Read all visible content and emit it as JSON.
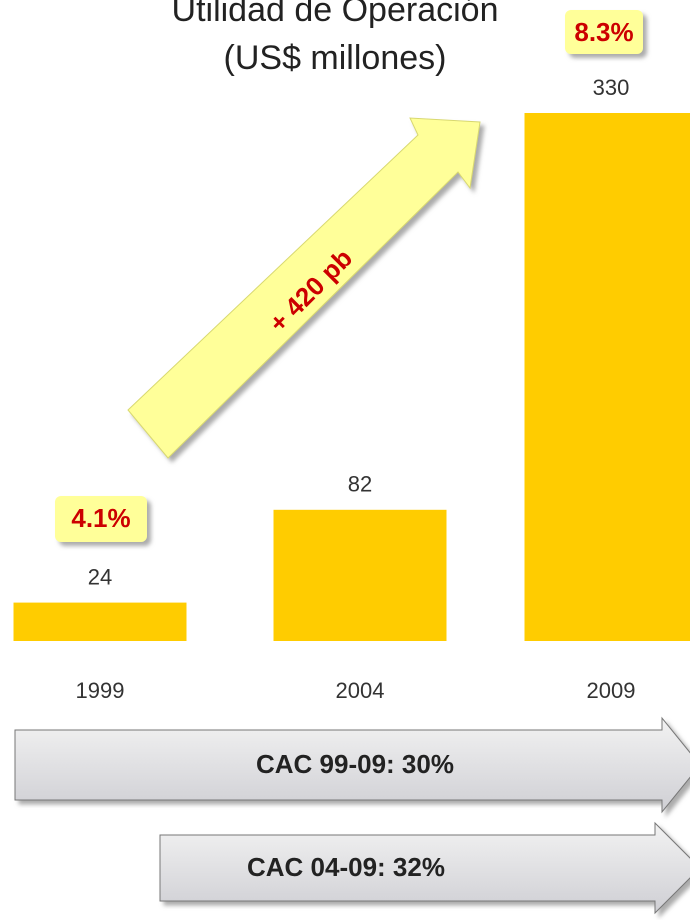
{
  "chart_data": {
    "type": "bar",
    "title": "Utilidad de Operación",
    "subtitle": "(US$ millones)",
    "categories": [
      "1999",
      "2004",
      "2009"
    ],
    "values": [
      24,
      82,
      330
    ],
    "color": "#ffcc00",
    "annotations": [
      "4.1%",
      "8.3%",
      "+ 420 pb",
      "CAC 99-09: 30%",
      "CAC 04-09: 32%"
    ]
  }
}
